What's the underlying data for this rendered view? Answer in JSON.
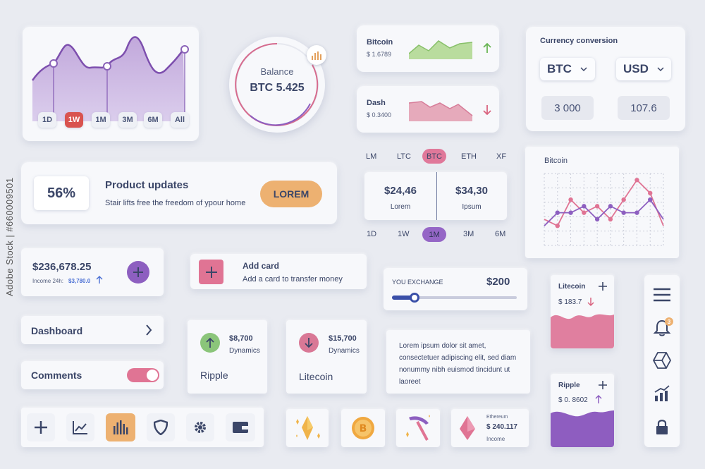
{
  "watermark": "Adobe Stock | #660009501",
  "main_chart": {
    "ranges": [
      "1D",
      "1W",
      "1M",
      "3M",
      "6M",
      "All"
    ],
    "active_range": "1W"
  },
  "balance": {
    "label": "Balance",
    "value": "BTC 5.425"
  },
  "bitcoin_mini": {
    "name": "Bitcoin",
    "price": "$ 1.6789",
    "trend": "up"
  },
  "dash_mini": {
    "name": "Dash",
    "price": "$ 0.3400",
    "trend": "down"
  },
  "conversion": {
    "title": "Currency conversion",
    "from_currency": "BTC",
    "to_currency": "USD",
    "from_amount": "3 000",
    "to_amount": "107.6"
  },
  "product": {
    "percent": "56%",
    "title": "Product updates",
    "subtitle": "Stair lifts free the freedom of ypour home",
    "button": "LOREM"
  },
  "ticker_tabs": {
    "items": [
      "LM",
      "LTC",
      "BTC",
      "ETH",
      "XF"
    ],
    "active": "BTC"
  },
  "price_pair": {
    "left_value": "$24,46",
    "left_label": "Lorem",
    "right_value": "$34,30",
    "right_label": "Ipsum"
  },
  "period_tabs": {
    "items": [
      "1D",
      "1W",
      "1M",
      "3M",
      "6M"
    ],
    "active": "1M"
  },
  "bitcoin_chart": {
    "title": "Bitcoin"
  },
  "chart_data": {
    "type": "line",
    "title": "Bitcoin",
    "x": [
      1,
      2,
      3,
      4,
      5,
      6,
      7,
      8,
      9,
      10
    ],
    "series": [
      {
        "values": [
          4,
          3,
          7,
          5,
          6,
          4,
          7,
          10,
          8,
          3
        ]
      },
      {
        "values": [
          3,
          5,
          5,
          6,
          4,
          6,
          5,
          5,
          7,
          4
        ]
      }
    ],
    "ylim": [
      0,
      11
    ],
    "grid": true
  },
  "income": {
    "amount": "$236,678.25",
    "label": "Income 24h:",
    "change": "$3,780.0"
  },
  "add_card": {
    "title": "Add card",
    "subtitle": "Add a card to transfer money"
  },
  "exchange": {
    "label": "YOU EXCHANGE",
    "amount": "$200",
    "slider_fraction": 0.18
  },
  "litecoin_card": {
    "name": "Litecoin",
    "price": "$ 183.7"
  },
  "dashboard_row": {
    "label": "Dashboard"
  },
  "comments_row": {
    "label": "Comments",
    "toggle_on": true
  },
  "ripple_tile": {
    "value": "$8,700",
    "sub": "Dynamics",
    "name": "Ripple"
  },
  "litecoin_tile": {
    "value": "$15,700",
    "sub": "Dynamics",
    "name": "Litecoin"
  },
  "lorem_text": "Lorem ipsum dolor sit amet, consectetuer adipiscing elit, sed diam nonummy nibh euismod tincidunt ut laoreet",
  "ripple_card": {
    "name": "Ripple",
    "price": "$ 0. 8602"
  },
  "sidebar": {
    "badge": "3",
    "icons": [
      "menu-icon",
      "bell-icon",
      "cube-icon",
      "bar-chart-icon",
      "lock-icon"
    ]
  },
  "toolbar": {
    "icons": [
      "plus-icon",
      "line-chart-icon",
      "bar-chart-icon",
      "shield-icon",
      "gear-icon",
      "wallet-icon"
    ],
    "active": "bar-chart-icon"
  },
  "ethereum": {
    "name": "Ethereum",
    "value": "$ 240.117",
    "label": "Income"
  },
  "colors": {
    "purple": "#8d5fc0",
    "pink": "#e07494",
    "orange": "#f0b068",
    "green": "#8bc57a",
    "navy": "#3b4668",
    "blue": "#4a6fd4"
  }
}
